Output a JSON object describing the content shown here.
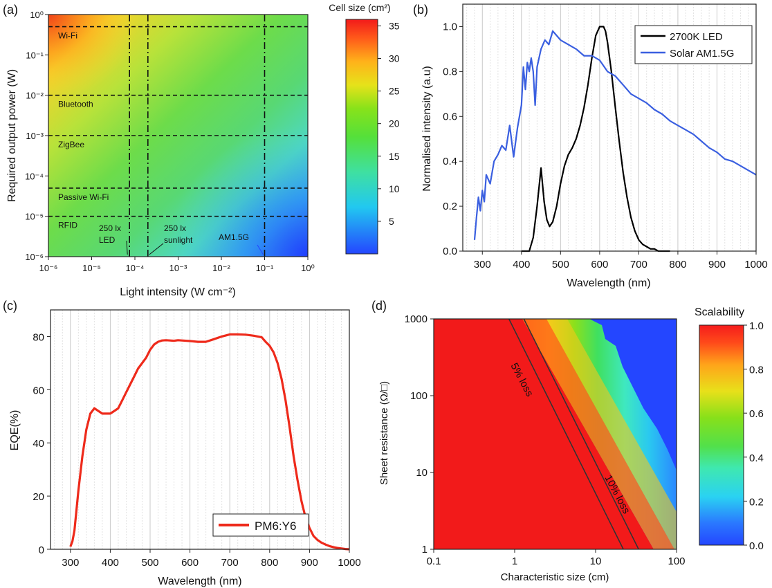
{
  "chart_data": [
    {
      "panel_label": "(a)",
      "type": "heatmap",
      "xlabel": "Light intensity (W cm⁻²)",
      "ylabel": "Required output power (W)",
      "x_scale": "log",
      "y_scale": "log",
      "xlim": [
        1e-06,
        1
      ],
      "ylim": [
        1e-06,
        1
      ],
      "x_ticks": [
        "10⁻⁶",
        "10⁻⁵",
        "10⁻⁴",
        "10⁻³",
        "10⁻²",
        "10⁻¹",
        "10⁰"
      ],
      "y_ticks": [
        "10⁻⁶",
        "10⁻⁵",
        "10⁻⁴",
        "10⁻³",
        "10⁻²",
        "10⁻¹",
        "10⁰"
      ],
      "colorbar": {
        "title": "Cell size (cm²)",
        "range": [
          0,
          36
        ],
        "ticks": [
          5,
          10,
          15,
          20,
          25,
          30,
          35
        ]
      },
      "power_levels": [
        {
          "label": "Wi-Fi",
          "value": 0.5
        },
        {
          "label": "Bluetooth",
          "value": 0.01
        },
        {
          "label": "ZigBee",
          "value": 0.001
        },
        {
          "label": "Passive Wi-Fi",
          "value": 5e-05
        },
        {
          "label": "RFID",
          "value": 1e-05
        }
      ],
      "intensity_markers": [
        {
          "label_line1": "250 lx",
          "label_line2": "LED",
          "value": 7.5e-05
        },
        {
          "label_line1": "250 lx",
          "label_line2": "sunlight",
          "value": 0.0002
        },
        {
          "label_line1": "AM1.5G",
          "label_line2": "",
          "value": 0.1
        }
      ]
    },
    {
      "panel_label": "(b)",
      "type": "line",
      "xlabel": "Wavelength (nm)",
      "ylabel": "Normalised intensity (a.u)",
      "xlim": [
        250,
        1000
      ],
      "ylim": [
        0,
        1.1
      ],
      "x_ticks": [
        300,
        400,
        500,
        600,
        700,
        800,
        900,
        1000
      ],
      "y_ticks": [
        "0.0",
        "0.2",
        "0.4",
        "0.6",
        "0.8",
        "1.0"
      ],
      "legend": "top-right",
      "series": [
        {
          "name": "2700K LED",
          "color": "#000000",
          "x": [
            400,
            410,
            420,
            430,
            440,
            450,
            458,
            465,
            472,
            480,
            490,
            500,
            510,
            520,
            530,
            540,
            550,
            560,
            570,
            580,
            590,
            600,
            605,
            610,
            615,
            620,
            630,
            640,
            650,
            660,
            670,
            680,
            690,
            700,
            710,
            720,
            730,
            740,
            750,
            760,
            770,
            780
          ],
          "y": [
            0.0,
            0.0,
            0.0,
            0.06,
            0.2,
            0.37,
            0.22,
            0.14,
            0.11,
            0.13,
            0.2,
            0.3,
            0.38,
            0.43,
            0.46,
            0.5,
            0.56,
            0.64,
            0.74,
            0.86,
            0.96,
            1.0,
            1.0,
            1.0,
            0.98,
            0.93,
            0.8,
            0.64,
            0.49,
            0.35,
            0.24,
            0.15,
            0.09,
            0.05,
            0.03,
            0.02,
            0.01,
            0.01,
            0.0,
            0.0,
            0.0,
            0.0
          ]
        },
        {
          "name": "Solar AM1.5G",
          "color": "#3a5fe0",
          "x": [
            280,
            285,
            290,
            295,
            300,
            305,
            310,
            320,
            330,
            340,
            350,
            360,
            370,
            380,
            390,
            400,
            405,
            410,
            415,
            420,
            425,
            430,
            435,
            440,
            450,
            460,
            470,
            480,
            490,
            500,
            520,
            540,
            560,
            580,
            600,
            620,
            640,
            660,
            680,
            700,
            720,
            740,
            760,
            780,
            800,
            820,
            840,
            860,
            880,
            900,
            920,
            940,
            960,
            980,
            1000
          ],
          "y": [
            0.05,
            0.15,
            0.24,
            0.18,
            0.27,
            0.22,
            0.34,
            0.3,
            0.4,
            0.43,
            0.47,
            0.45,
            0.56,
            0.42,
            0.55,
            0.65,
            0.82,
            0.72,
            0.84,
            0.8,
            0.86,
            0.8,
            0.65,
            0.82,
            0.9,
            0.94,
            0.92,
            0.98,
            0.96,
            0.94,
            0.92,
            0.9,
            0.87,
            0.87,
            0.85,
            0.8,
            0.78,
            0.74,
            0.7,
            0.68,
            0.66,
            0.63,
            0.61,
            0.58,
            0.56,
            0.54,
            0.52,
            0.49,
            0.46,
            0.44,
            0.41,
            0.4,
            0.38,
            0.36,
            0.34
          ]
        }
      ]
    },
    {
      "panel_label": "(c)",
      "type": "line",
      "xlabel": "Wavelength (nm)",
      "ylabel": "EQE(%)",
      "xlim": [
        250,
        1000
      ],
      "ylim": [
        0,
        90
      ],
      "x_ticks": [
        300,
        400,
        500,
        600,
        700,
        800,
        900,
        1000
      ],
      "y_ticks": [
        0,
        20,
        40,
        60,
        80
      ],
      "legend": "bottom-right",
      "series": [
        {
          "name": "PM6:Y6",
          "color": "#ee2a1b",
          "x": [
            300,
            305,
            310,
            320,
            330,
            340,
            350,
            360,
            370,
            380,
            390,
            400,
            410,
            420,
            430,
            440,
            450,
            460,
            470,
            480,
            490,
            500,
            510,
            520,
            530,
            540,
            550,
            560,
            570,
            580,
            600,
            620,
            640,
            660,
            680,
            700,
            720,
            740,
            760,
            780,
            790,
            800,
            810,
            820,
            830,
            840,
            850,
            860,
            870,
            880,
            890,
            900,
            910,
            920,
            930,
            940,
            950,
            960,
            970,
            980,
            990,
            1000
          ],
          "y": [
            1,
            3,
            7,
            22,
            35,
            45,
            51,
            53,
            52,
            51,
            51,
            51,
            52,
            53,
            56,
            59,
            62,
            65,
            68,
            70,
            72,
            75,
            77,
            78,
            78.5,
            78.6,
            78.5,
            78.4,
            78.6,
            78.5,
            78.3,
            78.0,
            78.0,
            79.0,
            80.0,
            80.8,
            80.8,
            80.7,
            80.3,
            79.7,
            78.0,
            76.5,
            74,
            70,
            64,
            56,
            46,
            35,
            26,
            18,
            12,
            8,
            5,
            3.5,
            2.5,
            1.8,
            1.2,
            0.8,
            0.5,
            0.3,
            0.1,
            0
          ]
        }
      ]
    },
    {
      "panel_label": "(d)",
      "type": "heatmap",
      "xlabel": "Characteristic size (cm)",
      "ylabel": "Sheet resistance (Ω/□)",
      "x_scale": "log",
      "y_scale": "log",
      "xlim": [
        0.1,
        100
      ],
      "ylim": [
        1,
        1000
      ],
      "x_ticks": [
        "0.1",
        "1",
        "10",
        "100"
      ],
      "y_ticks": [
        "1",
        "10",
        "100",
        "1000"
      ],
      "colorbar": {
        "title": "Scalability",
        "range": [
          0,
          1
        ],
        "ticks": [
          "0.0",
          "0.2",
          "0.4",
          "0.6",
          "0.8",
          "1.0"
        ]
      },
      "contours": [
        {
          "label": "5% loss",
          "points": [
            [
              0.85,
              1000
            ],
            [
              22,
              1
            ]
          ]
        },
        {
          "label": "10% loss",
          "points": [
            [
              1.3,
              1000
            ],
            [
              34,
              1
            ]
          ]
        }
      ]
    }
  ]
}
